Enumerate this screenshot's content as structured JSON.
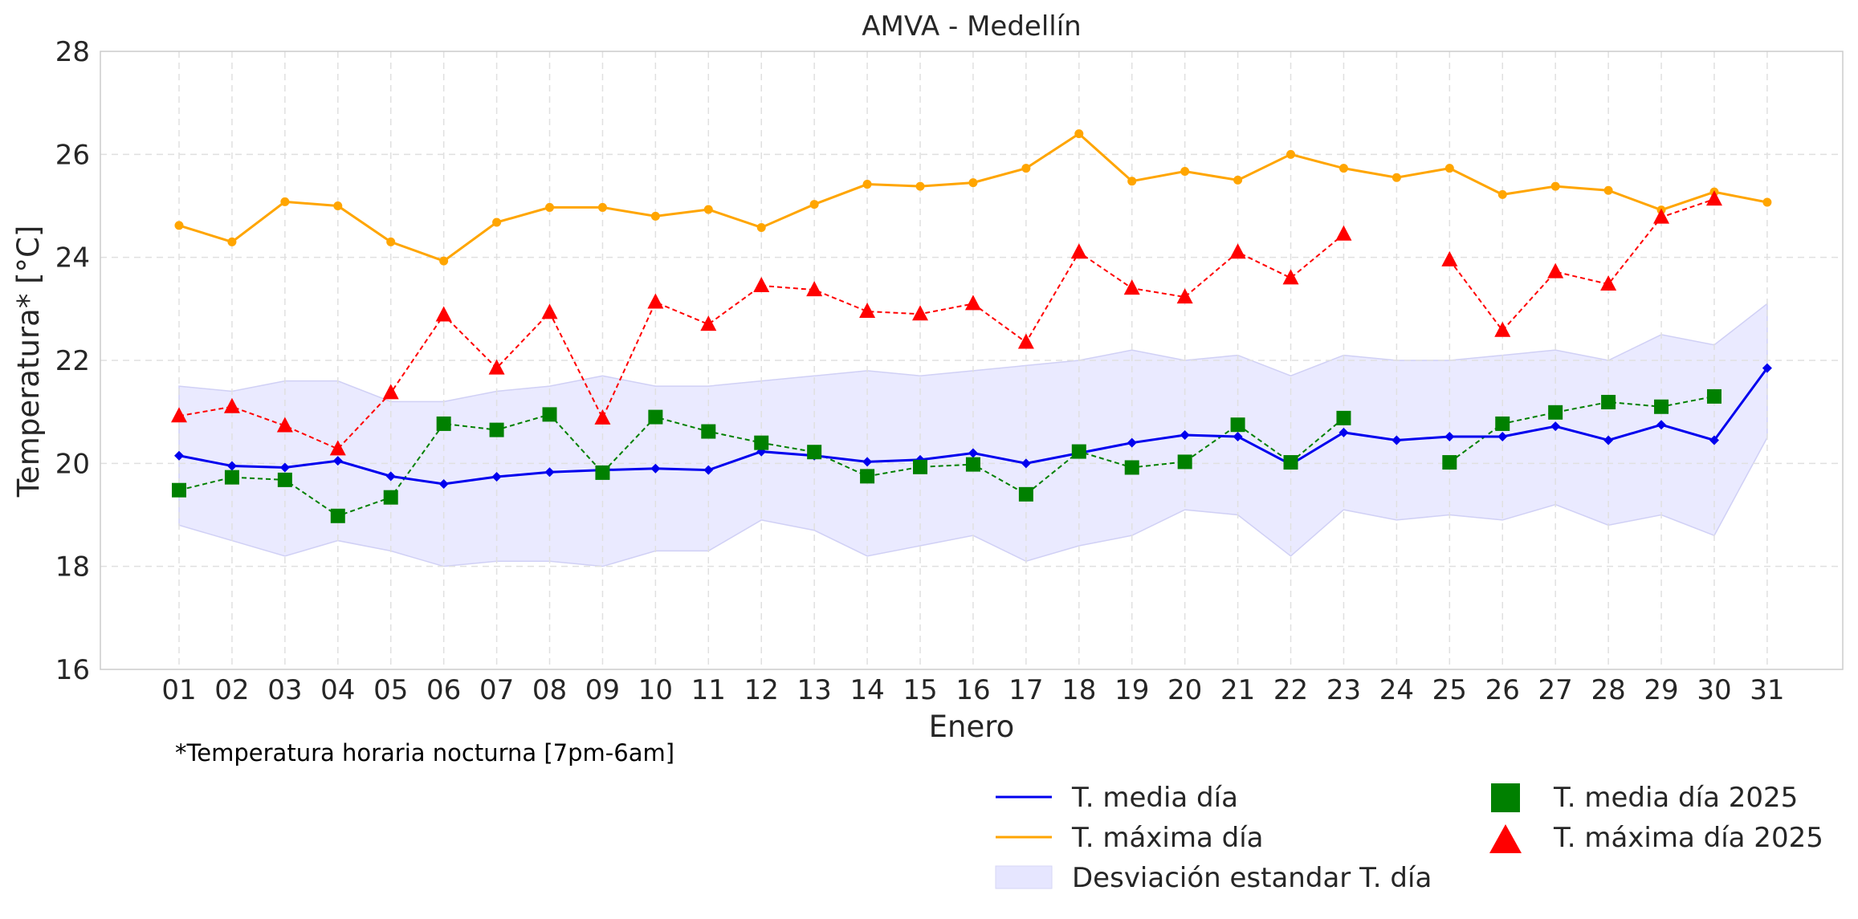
{
  "chart_data": {
    "type": "line",
    "title": "AMVA - Medellín",
    "xlabel": "Enero",
    "ylabel": "Temperatura* [°C]",
    "note": "*Temperatura horaria nocturna [7pm-6am]",
    "ylim": [
      16,
      28
    ],
    "yticks": [
      16,
      18,
      20,
      22,
      24,
      26,
      28
    ],
    "categories": [
      "01",
      "02",
      "03",
      "04",
      "05",
      "06",
      "07",
      "08",
      "09",
      "10",
      "11",
      "12",
      "13",
      "14",
      "15",
      "16",
      "17",
      "18",
      "19",
      "20",
      "21",
      "22",
      "23",
      "24",
      "25",
      "26",
      "27",
      "28",
      "29",
      "30",
      "31"
    ],
    "grid": true,
    "legend_position": "bottom-right",
    "colors": {
      "media": "#0000ee",
      "maxima": "#ffa500",
      "band": "#e6e6ff",
      "media2025": "#008000",
      "maxima2025": "#ff0000"
    },
    "band": {
      "name": "Desviación estandar T. día",
      "lower": [
        18.8,
        18.5,
        18.2,
        18.5,
        18.3,
        18.0,
        18.1,
        18.1,
        18.0,
        18.3,
        18.3,
        18.9,
        18.7,
        18.2,
        18.4,
        18.6,
        18.1,
        18.4,
        18.6,
        19.1,
        19.0,
        18.2,
        19.1,
        18.9,
        19.0,
        18.9,
        19.2,
        18.8,
        19.0,
        18.6,
        20.5
      ],
      "upper": [
        21.5,
        21.4,
        21.6,
        21.6,
        21.2,
        21.2,
        21.4,
        21.5,
        21.7,
        21.5,
        21.5,
        21.6,
        21.7,
        21.8,
        21.7,
        21.8,
        21.9,
        22.0,
        22.2,
        22.0,
        22.1,
        21.7,
        22.1,
        22.0,
        22.0,
        22.1,
        22.2,
        22.0,
        22.5,
        22.3,
        23.1
      ]
    },
    "series": [
      {
        "name": "T. media día",
        "values": [
          20.15,
          19.95,
          19.92,
          20.05,
          19.75,
          19.6,
          19.74,
          19.83,
          19.87,
          19.9,
          19.87,
          20.23,
          20.15,
          20.03,
          20.07,
          20.2,
          20.0,
          20.2,
          20.4,
          20.55,
          20.52,
          19.98,
          20.6,
          20.45,
          20.52,
          20.52,
          20.72,
          20.45,
          20.75,
          20.45,
          21.85
        ]
      },
      {
        "name": "T. máxima día",
        "values": [
          24.62,
          24.3,
          25.08,
          25.0,
          24.3,
          23.93,
          24.68,
          24.97,
          24.97,
          24.8,
          24.93,
          24.58,
          25.03,
          25.42,
          25.38,
          25.45,
          25.73,
          26.4,
          25.48,
          25.67,
          25.5,
          26.0,
          25.73,
          25.55,
          25.73,
          25.22,
          25.38,
          25.3,
          24.92,
          25.27,
          25.07
        ]
      },
      {
        "name": "T. media día 2025",
        "values": [
          19.48,
          19.73,
          19.68,
          18.98,
          19.34,
          20.77,
          20.65,
          20.95,
          19.82,
          20.9,
          20.62,
          20.4,
          20.22,
          19.75,
          19.93,
          19.98,
          19.4,
          20.23,
          19.92,
          20.03,
          20.75,
          20.02,
          20.88,
          null,
          20.02,
          20.77,
          20.99,
          21.19,
          21.1,
          21.3,
          null
        ]
      },
      {
        "name": "T. máxima día 2025",
        "values": [
          20.92,
          21.1,
          20.73,
          20.28,
          21.37,
          22.88,
          21.85,
          22.93,
          20.88,
          23.13,
          22.7,
          23.45,
          23.37,
          22.95,
          22.9,
          23.1,
          22.35,
          24.1,
          23.4,
          23.23,
          24.1,
          23.6,
          24.45,
          null,
          23.95,
          22.58,
          23.72,
          23.48,
          24.78,
          25.13,
          null
        ]
      }
    ]
  }
}
